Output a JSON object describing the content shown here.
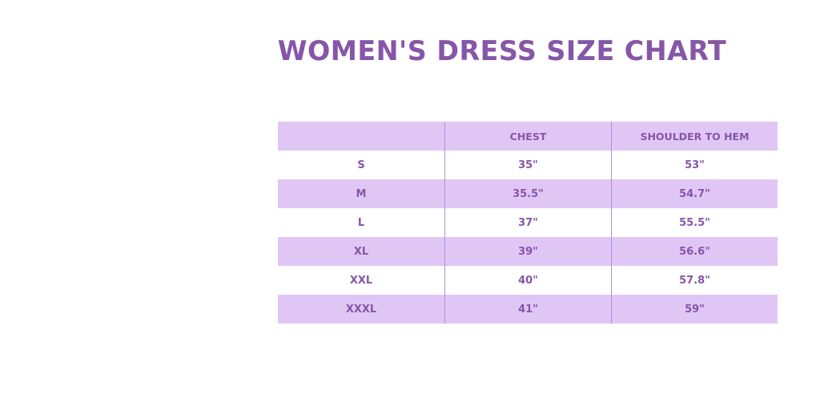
{
  "title": "WOMEN'S DRESS SIZE CHART",
  "colors": {
    "text": "#8656a8",
    "band": "#e0c6f5",
    "background": "#ffffff"
  },
  "table": {
    "headers": [
      "",
      "CHEST",
      "SHOULDER TO HEM"
    ],
    "rows": [
      [
        "S",
        "35\"",
        "53\""
      ],
      [
        "M",
        "35.5\"",
        "54.7\""
      ],
      [
        "L",
        "37\"",
        "55.5\""
      ],
      [
        "XL",
        "39\"",
        "56.6\""
      ],
      [
        "XXL",
        "40\"",
        "57.8\""
      ],
      [
        "XXXL",
        "41\"",
        "59\""
      ]
    ]
  }
}
